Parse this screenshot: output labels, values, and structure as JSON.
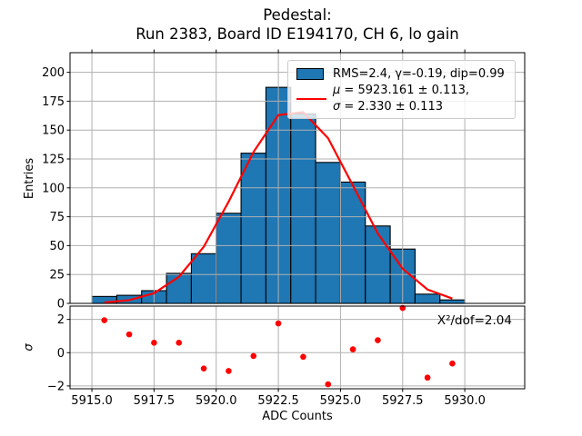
{
  "figure": {
    "title_line1": "Pedestal:",
    "title_line2": "Run 2383, Board ID E194170, CH 6, lo gain"
  },
  "legend": {
    "hist_label": "RMS=2.4, γ=-0.19, dip=0.99",
    "mu_symbol": "μ",
    "mu_rest": " = 5923.161 ± 0.113,",
    "sigma_symbol": "σ",
    "sigma_rest": " = 2.330 ± 0.113"
  },
  "annotation": {
    "chi2": "X²/dof=2.04"
  },
  "colors": {
    "bar_fill": "#1f77b4",
    "bar_edge": "#000000",
    "fit_line": "#ff0000",
    "residual_dot": "#ff0000",
    "grid": "#b0b0b0",
    "spine": "#000000",
    "legend_border": "#cccccc"
  },
  "chart_data": [
    {
      "type": "bar",
      "title": "Pedestal: Run 2383, Board ID E194170, CH 6, lo gain",
      "ylabel": "Entries",
      "bin_width": 1,
      "bin_edges": [
        5915,
        5916,
        5917,
        5918,
        5919,
        5920,
        5921,
        5922,
        5923,
        5924,
        5925,
        5926,
        5927,
        5928,
        5929,
        5930
      ],
      "bin_centers": [
        5915.5,
        5916.5,
        5917.5,
        5918.5,
        5919.5,
        5920.5,
        5921.5,
        5922.5,
        5923.5,
        5924.5,
        5925.5,
        5926.5,
        5927.5,
        5928.5,
        5929.5
      ],
      "values": [
        6,
        7,
        11,
        26,
        43,
        78,
        130,
        187,
        164,
        122,
        105,
        67,
        47,
        8,
        3
      ],
      "fit": {
        "type": "skew-gaussian",
        "mu": 5923.161,
        "mu_err": 0.113,
        "sigma": 2.33,
        "sigma_err": 0.113,
        "rms": 2.4,
        "gamma": -0.19,
        "dip": 0.99,
        "curve_values": [
          0.8,
          2.8,
          8.8,
          23,
          49,
          88,
          131,
          163,
          165.5,
          143,
          102,
          60.5,
          30,
          12,
          4.2
        ]
      },
      "xlim": [
        5914.12,
        5932.41
      ],
      "ylim": [
        0,
        217
      ],
      "yticks": [
        0,
        25,
        50,
        75,
        100,
        125,
        150,
        175,
        200
      ],
      "ytick_labels": [
        "0",
        "25",
        "50",
        "75",
        "100",
        "125",
        "150",
        "175",
        "200"
      ],
      "xticks": [
        5915,
        5917.5,
        5920,
        5922.5,
        5925,
        5927.5,
        5930
      ],
      "grid": true,
      "legend_position": "upper right"
    },
    {
      "type": "scatter",
      "xlabel": "ADC Counts",
      "ylabel": "σ",
      "x": [
        5915.5,
        5916.5,
        5917.5,
        5918.5,
        5919.5,
        5920.5,
        5921.5,
        5922.5,
        5923.5,
        5924.5,
        5925.5,
        5926.5,
        5927.5,
        5928.5,
        5929.5
      ],
      "values": [
        1.95,
        1.1,
        0.6,
        0.6,
        -0.95,
        -1.1,
        -0.2,
        1.76,
        -0.25,
        -1.9,
        0.2,
        0.75,
        2.69,
        -1.5,
        -0.65
      ],
      "xlim": [
        5914.12,
        5932.41
      ],
      "ylim": [
        -2.17,
        2.8
      ],
      "yticks": [
        -2,
        0,
        2
      ],
      "ytick_labels": [
        "−2",
        "0",
        "2"
      ],
      "xticks": [
        5915,
        5917.5,
        5920,
        5922.5,
        5925,
        5927.5,
        5930
      ],
      "xtick_labels": [
        "5915.0",
        "5917.5",
        "5920.0",
        "5922.5",
        "5925.0",
        "5927.5",
        "5930.0"
      ],
      "annotation": "X²/dof=2.04",
      "grid": true
    }
  ]
}
